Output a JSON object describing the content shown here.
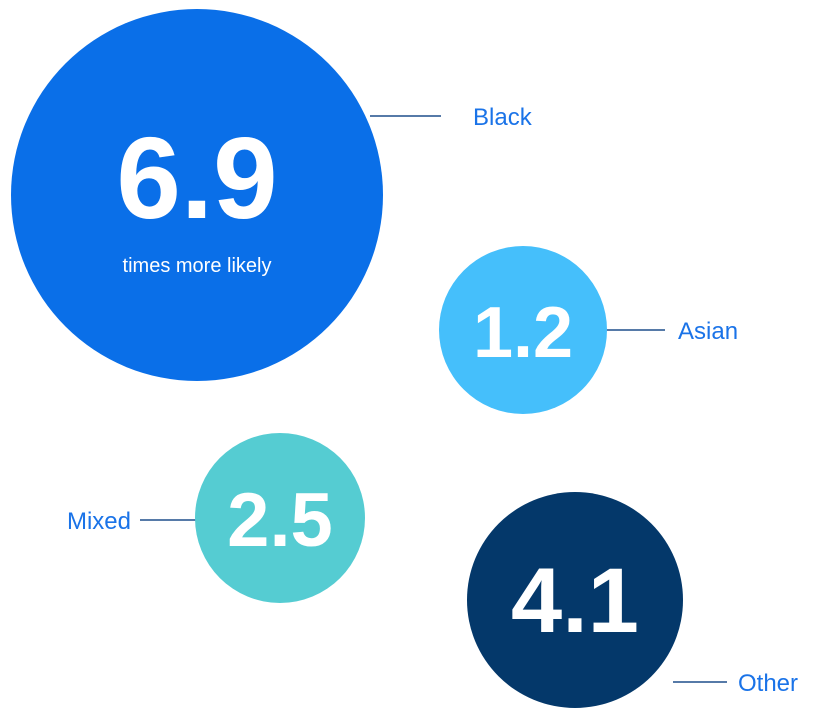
{
  "chart_data": {
    "type": "bubble",
    "caption": "times more likely",
    "label_color": "#1a73e8",
    "connector_color": "#1f4e8c",
    "series": [
      {
        "label": "Black",
        "value": "6.9",
        "color": "#0a6fe8"
      },
      {
        "label": "Asian",
        "value": "1.2",
        "color": "#45bffb"
      },
      {
        "label": "Mixed",
        "value": "2.5",
        "color": "#55ccd2"
      },
      {
        "label": "Other",
        "value": "4.1",
        "color": "#04386a"
      }
    ]
  }
}
